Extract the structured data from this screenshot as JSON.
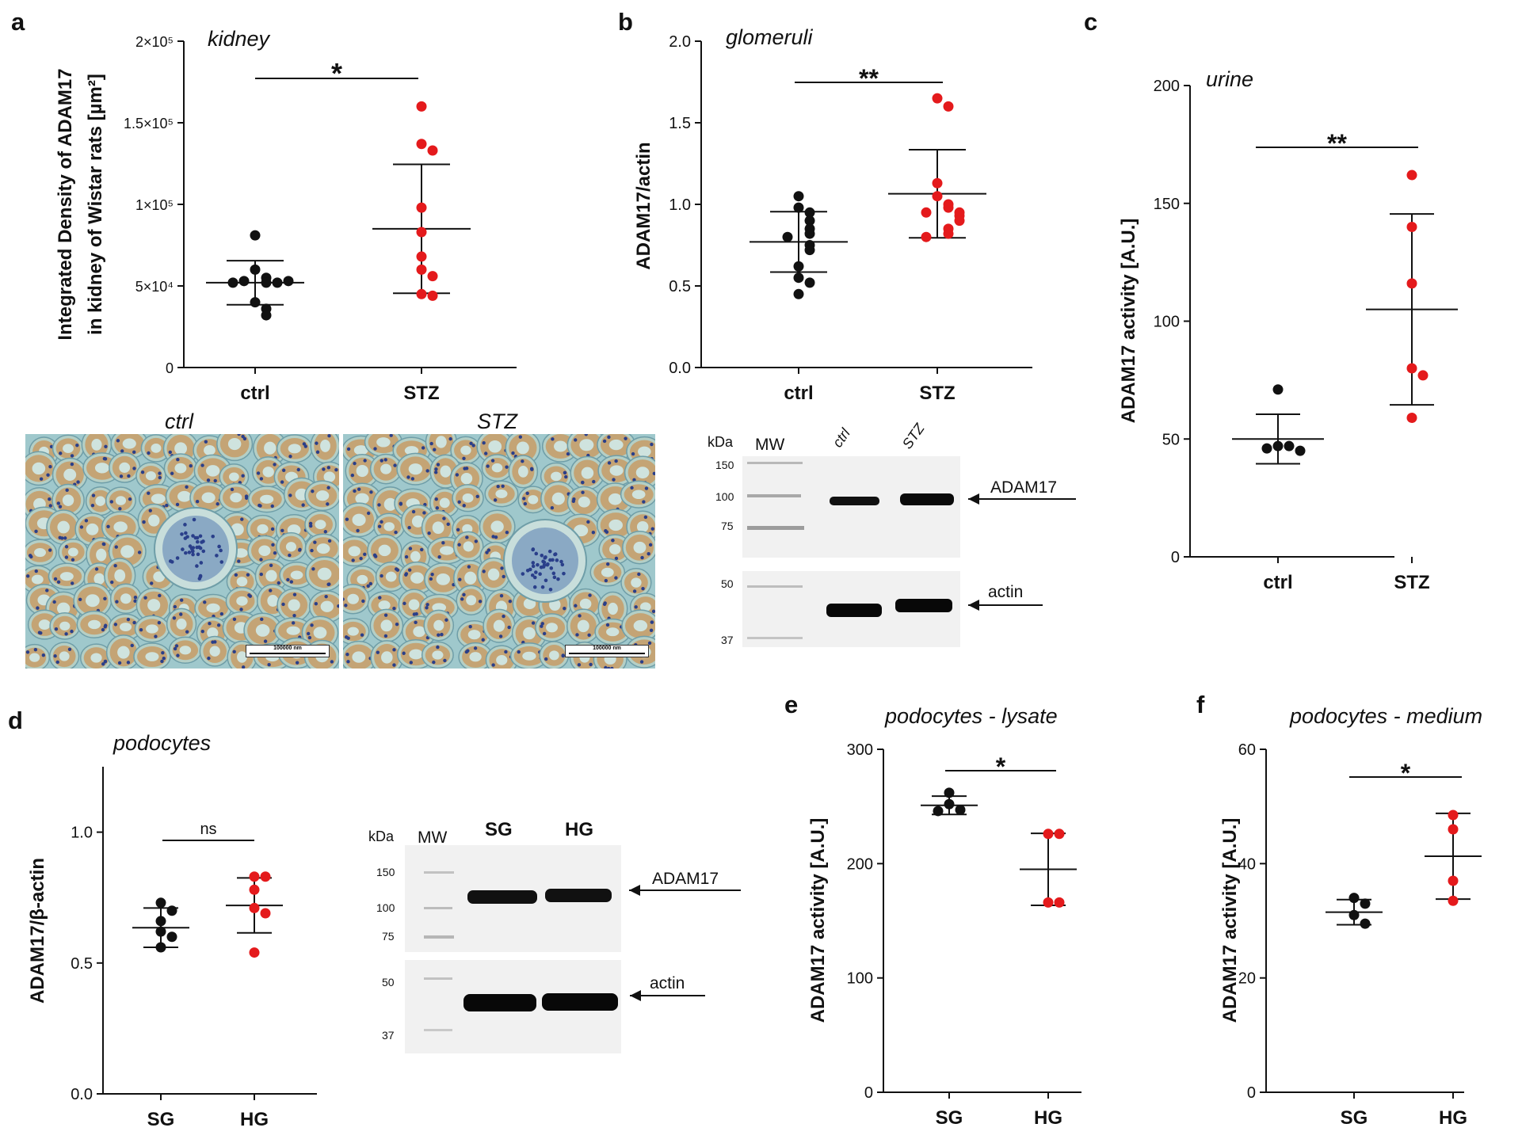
{
  "panels": {
    "a": "a",
    "b": "b",
    "c": "c",
    "d": "d",
    "e": "e",
    "f": "f"
  },
  "colors": {
    "ctrl": "#111111",
    "treated": "#e41a1c",
    "tissue_bg": "#9fc8cc",
    "tubule": "#c9965a",
    "nuclei": "#2a3f8a",
    "blot_bg": "#f0f0f0"
  },
  "micrographs": {
    "ctrl_label": "ctrl",
    "stz_label": "STZ",
    "scale_bar": "100000 nm"
  },
  "blot_b": {
    "kda": "kDa",
    "mw": "MW",
    "lanes": [
      "ctrl",
      "STZ"
    ],
    "markers": [
      "150",
      "100",
      "75",
      "50",
      "37"
    ],
    "target": "ADAM17",
    "loading": "actin"
  },
  "blot_d": {
    "kda": "kDa",
    "mw": "MW",
    "lanes": [
      "SG",
      "HG"
    ],
    "markers": [
      "150",
      "100",
      "75",
      "50",
      "37"
    ],
    "target": "ADAM17",
    "loading": "actin"
  },
  "chart_data": [
    {
      "id": "a",
      "type": "scatter",
      "title": "kidney",
      "ylabel_line1": "Integrated Density of ADAM17",
      "ylabel_line2": "in kidney of Wistar rats [µm²]",
      "ylim": [
        0,
        200000
      ],
      "yticks": [
        0,
        50000,
        100000,
        150000,
        200000
      ],
      "ytick_labels": [
        "0",
        "5×10⁴",
        "1×10⁵",
        "1.5×10⁵",
        "2×10⁵"
      ],
      "categories": [
        "ctrl",
        "STZ"
      ],
      "significance": "*",
      "series": [
        {
          "name": "ctrl",
          "values": [
            81000,
            60000,
            55000,
            52000,
            53000,
            52000,
            52000,
            53000,
            40000,
            36000,
            32000
          ],
          "mean": 52000,
          "sd": 13500
        },
        {
          "name": "STZ",
          "values": [
            160000,
            137000,
            133000,
            98000,
            83000,
            68000,
            60000,
            56000,
            45000,
            44000
          ],
          "mean": 85000,
          "sd": 39500
        }
      ]
    },
    {
      "id": "b",
      "type": "scatter",
      "title": "glomeruli",
      "ylabel": "ADAM17/actin",
      "ylim": [
        0,
        2.0
      ],
      "yticks": [
        0,
        0.5,
        1.0,
        1.5,
        2.0
      ],
      "ytick_labels": [
        "0.0",
        "0.5",
        "1.0",
        "1.5",
        "2.0"
      ],
      "categories": [
        "ctrl",
        "STZ"
      ],
      "significance": "**",
      "series": [
        {
          "name": "ctrl",
          "values": [
            1.05,
            0.98,
            0.95,
            0.9,
            0.85,
            0.82,
            0.8,
            0.75,
            0.72,
            0.62,
            0.55,
            0.52,
            0.45
          ],
          "mean": 0.77,
          "sd": 0.185
        },
        {
          "name": "STZ",
          "values": [
            1.65,
            1.6,
            1.13,
            1.05,
            1.0,
            0.98,
            0.95,
            0.95,
            0.93,
            0.9,
            0.85,
            0.82,
            0.8
          ],
          "mean": 1.065,
          "sd": 0.27
        }
      ]
    },
    {
      "id": "c",
      "type": "scatter",
      "title": "urine",
      "ylabel": "ADAM17 activity [A.U.]",
      "ylim": [
        0,
        200
      ],
      "yticks": [
        0,
        50,
        100,
        150,
        200
      ],
      "ytick_labels": [
        "0",
        "50",
        "100",
        "150",
        "200"
      ],
      "categories": [
        "ctrl",
        "STZ"
      ],
      "significance": "**",
      "series": [
        {
          "name": "ctrl",
          "values": [
            71,
            47,
            47,
            46,
            45
          ],
          "mean": 50,
          "sd": 10.5
        },
        {
          "name": "STZ",
          "values": [
            162,
            140,
            116,
            80,
            77,
            59
          ],
          "mean": 105,
          "sd": 40.5
        }
      ]
    },
    {
      "id": "d",
      "type": "scatter",
      "title": "podocytes",
      "ylabel": "ADAM17/β-actin",
      "ylim": [
        0,
        1.25
      ],
      "yticks": [
        0,
        0.5,
        1.0
      ],
      "ytick_labels": [
        "0.0",
        "0.5",
        "1.0"
      ],
      "categories": [
        "SG",
        "HG"
      ],
      "significance": "ns",
      "series": [
        {
          "name": "SG",
          "values": [
            0.73,
            0.7,
            0.66,
            0.62,
            0.6,
            0.56
          ],
          "mean": 0.635,
          "sd": 0.075
        },
        {
          "name": "HG",
          "values": [
            0.83,
            0.83,
            0.78,
            0.71,
            0.69,
            0.54
          ],
          "mean": 0.72,
          "sd": 0.105
        }
      ]
    },
    {
      "id": "e",
      "type": "scatter",
      "title": "podocytes - lysate",
      "ylabel": "ADAM17 activity [A.U.]",
      "ylim": [
        0,
        300
      ],
      "yticks": [
        0,
        100,
        200,
        300
      ],
      "ytick_labels": [
        "0",
        "100",
        "200",
        "300"
      ],
      "categories": [
        "SG",
        "HG"
      ],
      "significance": "*",
      "series": [
        {
          "name": "SG",
          "values": [
            262,
            252,
            247,
            246
          ],
          "mean": 251,
          "sd": 8
        },
        {
          "name": "HG",
          "values": [
            226,
            226,
            166,
            166
          ],
          "mean": 195,
          "sd": 31.5
        }
      ]
    },
    {
      "id": "f",
      "type": "scatter",
      "title": "podocytes - medium",
      "ylabel": "ADAM17 activity [A.U.]",
      "ylim": [
        0,
        60
      ],
      "yticks": [
        0,
        20,
        40,
        60
      ],
      "ytick_labels": [
        "0",
        "20",
        "40",
        "60"
      ],
      "categories": [
        "SG",
        "HG"
      ],
      "significance": "*",
      "series": [
        {
          "name": "SG",
          "values": [
            34,
            33,
            31,
            29.5
          ],
          "mean": 31.5,
          "sd": 2.2
        },
        {
          "name": "HG",
          "values": [
            48.5,
            46,
            37,
            33.5
          ],
          "mean": 41.3,
          "sd": 7.5
        }
      ]
    }
  ]
}
